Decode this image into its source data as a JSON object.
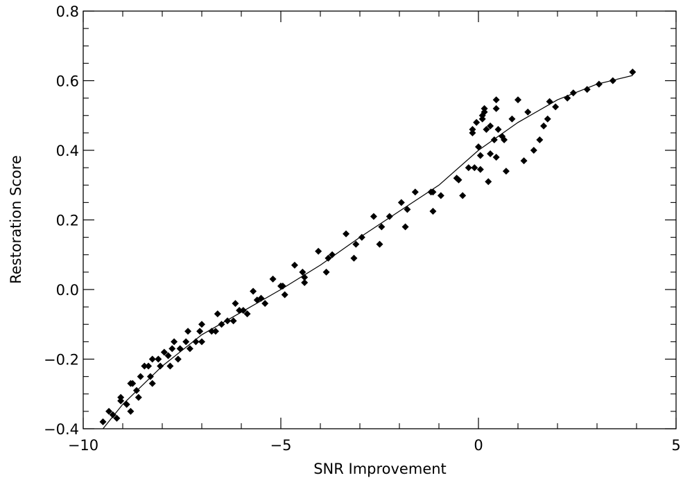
{
  "chart_data": {
    "type": "scatter",
    "title": "",
    "xlabel": "SNR Improvement",
    "ylabel": "Restoration Score",
    "xlim": [
      -10,
      5
    ],
    "ylim": [
      -0.4,
      0.8
    ],
    "x_ticks": [
      -10,
      -5,
      0,
      5
    ],
    "x_tick_labels": [
      "−10",
      "−5",
      "0",
      "5"
    ],
    "y_ticks": [
      -0.4,
      -0.2,
      0.0,
      0.2,
      0.4,
      0.6,
      0.8
    ],
    "y_tick_labels": [
      "−0.4",
      "−0.2",
      "0.0",
      "0.2",
      "0.4",
      "0.6",
      "0.8"
    ],
    "grid": false,
    "marker": "diamond",
    "series": [
      {
        "kind": "scatter",
        "points": [
          [
            -9.5,
            -0.38
          ],
          [
            -9.35,
            -0.35
          ],
          [
            -9.25,
            -0.36
          ],
          [
            -9.15,
            -0.37
          ],
          [
            -9.05,
            -0.31
          ],
          [
            -9.05,
            -0.32
          ],
          [
            -8.9,
            -0.33
          ],
          [
            -8.8,
            -0.27
          ],
          [
            -8.75,
            -0.27
          ],
          [
            -8.8,
            -0.35
          ],
          [
            -8.65,
            -0.29
          ],
          [
            -8.6,
            -0.31
          ],
          [
            -8.55,
            -0.25
          ],
          [
            -8.45,
            -0.22
          ],
          [
            -8.35,
            -0.22
          ],
          [
            -8.3,
            -0.25
          ],
          [
            -8.25,
            -0.2
          ],
          [
            -8.25,
            -0.27
          ],
          [
            -8.1,
            -0.2
          ],
          [
            -8.05,
            -0.22
          ],
          [
            -7.95,
            -0.18
          ],
          [
            -7.85,
            -0.19
          ],
          [
            -7.8,
            -0.22
          ],
          [
            -7.75,
            -0.17
          ],
          [
            -7.7,
            -0.15
          ],
          [
            -7.6,
            -0.2
          ],
          [
            -7.55,
            -0.17
          ],
          [
            -7.4,
            -0.15
          ],
          [
            -7.35,
            -0.12
          ],
          [
            -7.3,
            -0.17
          ],
          [
            -7.15,
            -0.15
          ],
          [
            -7.05,
            -0.12
          ],
          [
            -7.0,
            -0.1
          ],
          [
            -7.0,
            -0.15
          ],
          [
            -6.75,
            -0.12
          ],
          [
            -6.65,
            -0.12
          ],
          [
            -6.6,
            -0.07
          ],
          [
            -6.5,
            -0.1
          ],
          [
            -6.35,
            -0.09
          ],
          [
            -6.2,
            -0.09
          ],
          [
            -6.15,
            -0.04
          ],
          [
            -6.05,
            -0.06
          ],
          [
            -5.95,
            -0.06
          ],
          [
            -5.85,
            -0.07
          ],
          [
            -5.7,
            -0.005
          ],
          [
            -5.6,
            -0.03
          ],
          [
            -5.5,
            -0.025
          ],
          [
            -5.4,
            -0.04
          ],
          [
            -5.2,
            0.03
          ],
          [
            -5.0,
            0.01
          ],
          [
            -4.95,
            0.01
          ],
          [
            -4.9,
            -0.015
          ],
          [
            -4.65,
            0.07
          ],
          [
            -4.45,
            0.05
          ],
          [
            -4.4,
            0.035
          ],
          [
            -4.4,
            0.02
          ],
          [
            -4.05,
            0.11
          ],
          [
            -3.85,
            0.05
          ],
          [
            -3.8,
            0.09
          ],
          [
            -3.7,
            0.1
          ],
          [
            -3.35,
            0.16
          ],
          [
            -3.15,
            0.09
          ],
          [
            -3.1,
            0.13
          ],
          [
            -2.95,
            0.15
          ],
          [
            -2.65,
            0.21
          ],
          [
            -2.5,
            0.13
          ],
          [
            -2.45,
            0.18
          ],
          [
            -2.25,
            0.21
          ],
          [
            -1.95,
            0.25
          ],
          [
            -1.85,
            0.18
          ],
          [
            -1.8,
            0.23
          ],
          [
            -1.6,
            0.28
          ],
          [
            -1.2,
            0.28
          ],
          [
            -1.15,
            0.28
          ],
          [
            -1.15,
            0.225
          ],
          [
            -0.95,
            0.27
          ],
          [
            -0.55,
            0.32
          ],
          [
            -0.5,
            0.315
          ],
          [
            -0.4,
            0.27
          ],
          [
            -0.25,
            0.35
          ],
          [
            -0.15,
            0.46
          ],
          [
            -0.15,
            0.45
          ],
          [
            -0.1,
            0.35
          ],
          [
            -0.05,
            0.48
          ],
          [
            0.0,
            0.41
          ],
          [
            0.05,
            0.345
          ],
          [
            0.05,
            0.385
          ],
          [
            0.1,
            0.5
          ],
          [
            0.1,
            0.49
          ],
          [
            0.15,
            0.52
          ],
          [
            0.15,
            0.51
          ],
          [
            0.2,
            0.46
          ],
          [
            0.25,
            0.31
          ],
          [
            0.3,
            0.39
          ],
          [
            0.3,
            0.47
          ],
          [
            0.4,
            0.43
          ],
          [
            0.45,
            0.38
          ],
          [
            0.45,
            0.545
          ],
          [
            0.45,
            0.52
          ],
          [
            0.5,
            0.46
          ],
          [
            0.6,
            0.44
          ],
          [
            0.65,
            0.43
          ],
          [
            0.7,
            0.34
          ],
          [
            0.85,
            0.49
          ],
          [
            1.0,
            0.545
          ],
          [
            1.15,
            0.37
          ],
          [
            1.25,
            0.51
          ],
          [
            1.4,
            0.4
          ],
          [
            1.55,
            0.43
          ],
          [
            1.65,
            0.47
          ],
          [
            1.75,
            0.49
          ],
          [
            1.8,
            0.54
          ],
          [
            1.95,
            0.525
          ],
          [
            2.25,
            0.55
          ],
          [
            2.4,
            0.565
          ],
          [
            2.75,
            0.575
          ],
          [
            3.05,
            0.59
          ],
          [
            3.4,
            0.6
          ],
          [
            3.9,
            0.625
          ]
        ]
      },
      {
        "kind": "line",
        "points": [
          [
            -9.5,
            -0.4
          ],
          [
            -9.0,
            -0.33
          ],
          [
            -8.0,
            -0.22
          ],
          [
            -7.0,
            -0.13
          ],
          [
            -6.0,
            -0.065
          ],
          [
            -5.0,
            0.0
          ],
          [
            -4.0,
            0.07
          ],
          [
            -3.0,
            0.15
          ],
          [
            -2.0,
            0.225
          ],
          [
            -1.0,
            0.3
          ],
          [
            0.0,
            0.4
          ],
          [
            0.5,
            0.44
          ],
          [
            1.0,
            0.48
          ],
          [
            2.0,
            0.545
          ],
          [
            3.0,
            0.59
          ],
          [
            3.9,
            0.615
          ]
        ]
      }
    ]
  }
}
